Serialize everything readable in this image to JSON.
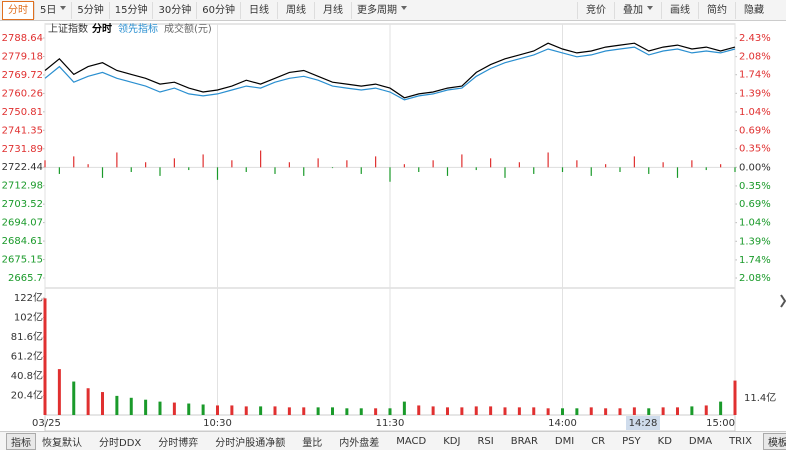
{
  "toolbar": {
    "left": [
      "分时",
      "5日",
      "5分钟",
      "15分钟",
      "30分钟",
      "60分钟",
      "日线",
      "周线",
      "月线",
      "更多周期"
    ],
    "right": [
      "竞价",
      "叠加",
      "画线",
      "简约",
      "隐藏"
    ]
  },
  "tabs": [
    "指标",
    "恢复默认",
    "分时DDX",
    "分时博弈",
    "分时沪股通净额",
    "量比",
    "内外盘差",
    "MACD",
    "KDJ",
    "RSI",
    "BRAR",
    "DMI",
    "CR",
    "PSY",
    "KD",
    "DMA",
    "TRIX",
    "模板"
  ],
  "chart_data": [
    {
      "type": "line",
      "title": "上证指数",
      "x": [
        0,
        5,
        10,
        15,
        20,
        25,
        30,
        35,
        40,
        45,
        50,
        55,
        60,
        65,
        70,
        75,
        80,
        85,
        90,
        95,
        100,
        105,
        110,
        115,
        120,
        125,
        130,
        135,
        140,
        145,
        150,
        155,
        160,
        165,
        170,
        175,
        180,
        185,
        190,
        195,
        200,
        205,
        210,
        215,
        220,
        225,
        230,
        235,
        240
      ],
      "xlim": [
        0,
        240
      ],
      "series": [
        {
          "name": "分时",
          "color": "#000000",
          "values": [
            2772,
            2778,
            2770,
            2774,
            2776,
            2772,
            2770,
            2768,
            2765,
            2766,
            2763,
            2761,
            2762,
            2764,
            2767,
            2765,
            2768,
            2771,
            2772,
            2769,
            2766,
            2765,
            2764,
            2765,
            2763,
            2758,
            2760,
            2761,
            2763,
            2764,
            2771,
            2775,
            2778,
            2780,
            2782,
            2786,
            2783,
            2781,
            2782,
            2784,
            2785,
            2786,
            2782,
            2784,
            2785,
            2783,
            2784,
            2782,
            2784
          ]
        },
        {
          "name": "领先指标",
          "color": "#2a8fd0",
          "values": [
            2768,
            2774,
            2766,
            2769,
            2771,
            2768,
            2766,
            2764,
            2761,
            2763,
            2760,
            2759,
            2760,
            2762,
            2764,
            2763,
            2766,
            2768,
            2769,
            2767,
            2764,
            2763,
            2762,
            2763,
            2761,
            2757,
            2759,
            2760,
            2762,
            2763,
            2769,
            2773,
            2776,
            2778,
            2780,
            2783,
            2781,
            2779,
            2780,
            2782,
            2783,
            2784,
            2780,
            2782,
            2783,
            2781,
            2782,
            2781,
            2783
          ]
        }
      ],
      "bars": {
        "up_color": "#e03030",
        "down_color": "#1a9a2a",
        "values": [
          2726,
          2719,
          2728,
          2724,
          2717,
          2730,
          2720,
          2725,
          2718,
          2727,
          2721,
          2729,
          2716,
          2726,
          2720,
          2731,
          2719,
          2725,
          2718,
          2727,
          2722,
          2726,
          2719,
          2728,
          2715,
          2724,
          2720,
          2726,
          2718,
          2729,
          2721,
          2727,
          2717,
          2725,
          2719,
          2730,
          2720,
          2726,
          2718,
          2724,
          2720,
          2728,
          2719,
          2725,
          2717,
          2726,
          2721,
          2724,
          2720
        ]
      },
      "ylim": [
        2665.7,
        2788.64
      ],
      "yticks": [
        2788.64,
        2779.18,
        2769.72,
        2760.26,
        2750.81,
        2741.35,
        2731.89,
        2722.44,
        2712.98,
        2703.52,
        2694.07,
        2684.61,
        2675.15,
        2665.7
      ],
      "y2lim": [
        -2.08,
        2.43
      ],
      "y2ticks": [
        {
          "value": 2.43,
          "label": "2.43%"
        },
        {
          "value": 2.08,
          "label": "2.08%"
        },
        {
          "value": 1.74,
          "label": "1.74%"
        },
        {
          "value": 1.39,
          "label": "1.39%"
        },
        {
          "value": 1.04,
          "label": "1.04%"
        },
        {
          "value": 0.69,
          "label": "0.69%"
        },
        {
          "value": 0.35,
          "label": "0.35%"
        },
        {
          "value": 0,
          "label": "0.00%"
        },
        {
          "value": -0.35,
          "label": "0.35%"
        },
        {
          "value": -0.69,
          "label": "0.69%"
        },
        {
          "value": -1.04,
          "label": "1.04%"
        },
        {
          "value": -1.39,
          "label": "1.39%"
        },
        {
          "value": -1.74,
          "label": "1.74%"
        },
        {
          "value": -2.08,
          "label": "2.08%"
        }
      ],
      "up_color": "#e03030",
      "down_color": "#1a9a2a",
      "xgrid": true
    },
    {
      "type": "bar",
      "title": "成交额(元)",
      "x": [
        0,
        5,
        10,
        15,
        20,
        25,
        30,
        35,
        40,
        45,
        50,
        55,
        60,
        65,
        70,
        75,
        80,
        85,
        90,
        95,
        100,
        105,
        110,
        115,
        120,
        125,
        130,
        135,
        140,
        145,
        150,
        155,
        160,
        165,
        170,
        175,
        180,
        185,
        190,
        195,
        200,
        205,
        210,
        215,
        220,
        225,
        230,
        235,
        240
      ],
      "xlim": [
        0,
        240
      ],
      "values": [
        122,
        48,
        35,
        28,
        24,
        20,
        18,
        16,
        14,
        13,
        12,
        11,
        10,
        10,
        9,
        9,
        9,
        8,
        8,
        8,
        8,
        7,
        7,
        7,
        7,
        14,
        10,
        9,
        8,
        8,
        9,
        9,
        8,
        8,
        8,
        7,
        7,
        7,
        8,
        7,
        7,
        8,
        7,
        8,
        8,
        9,
        10,
        14,
        36
      ],
      "ylim": [
        0,
        122.4
      ],
      "yticks": [
        {
          "value": 122.4,
          "label": "122亿"
        },
        {
          "value": 102,
          "label": "102亿"
        },
        {
          "value": 81.6,
          "label": "81.6亿"
        },
        {
          "value": 61.2,
          "label": "61.2亿"
        },
        {
          "value": 40.8,
          "label": "40.8亿"
        },
        {
          "value": 20.4,
          "label": "20.4亿"
        }
      ],
      "xticks": [
        {
          "value": 0,
          "label": "03/25"
        },
        {
          "value": 60,
          "label": "10:30"
        },
        {
          "value": 120,
          "label": "11:30"
        },
        {
          "value": 180,
          "label": "14:00"
        },
        {
          "value": 240,
          "label": "15:00"
        }
      ],
      "cursor": {
        "x": 208,
        "label": "14:28",
        "value_label": "11.4亿"
      },
      "up_color": "#e03030",
      "down_color": "#1a9a2a"
    }
  ]
}
